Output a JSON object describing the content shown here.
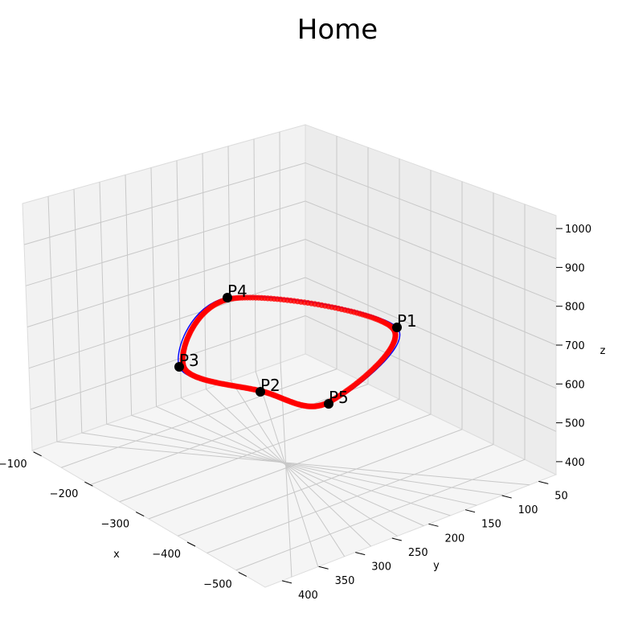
{
  "chart_data": {
    "type": "scatter3d",
    "title": "Home",
    "xlabel": "x",
    "ylabel": "y",
    "zlabel": "z",
    "xticks": [
      -100,
      -200,
      -300,
      -400,
      -500
    ],
    "yticks": [
      50,
      100,
      150,
      200,
      250,
      300,
      350,
      400
    ],
    "zticks": [
      400,
      500,
      600,
      700,
      800,
      900,
      1000
    ],
    "grid": true,
    "control_points": [
      {
        "label": "P1",
        "x": -500,
        "y": 70,
        "z": 950
      },
      {
        "label": "P2",
        "x": -150,
        "y": 340,
        "z": 560
      },
      {
        "label": "P3",
        "x": -50,
        "y": 200,
        "z": 520
      },
      {
        "label": "P4",
        "x": -100,
        "y": 110,
        "z": 840
      },
      {
        "label": "P5",
        "x": -380,
        "y": 300,
        "z": 560
      }
    ],
    "series": [
      {
        "name": "",
        "kind": "spline",
        "color": "#0000ff"
      },
      {
        "name": "",
        "kind": "sampled-points",
        "color": "#ff0000"
      }
    ]
  }
}
